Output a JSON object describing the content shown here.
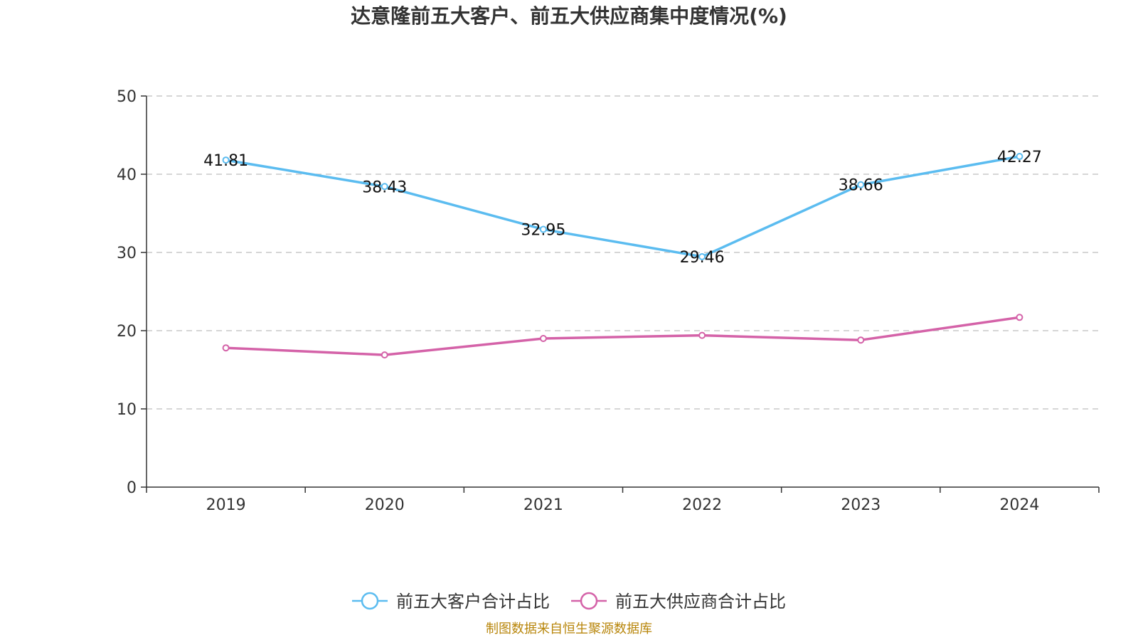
{
  "chart_data": {
    "type": "line",
    "title": "达意隆前五大客户、前五大供应商集中度情况(%)",
    "categories": [
      "2019",
      "2020",
      "2021",
      "2022",
      "2023",
      "2024"
    ],
    "ylim": [
      0,
      50
    ],
    "yticks": [
      0,
      10,
      20,
      30,
      40,
      50
    ],
    "grid": true,
    "legend_position": "bottom",
    "series": [
      {
        "name": "前五大客户合计占比",
        "color": "#5bbcf0",
        "values": [
          41.81,
          38.43,
          32.95,
          29.46,
          38.66,
          42.27
        ],
        "labels": [
          "41.81",
          "38.43",
          "32.95",
          "29.46",
          "38.66",
          "42.27"
        ],
        "show_labels": true
      },
      {
        "name": "前五大供应商合计占比",
        "color": "#d462a8",
        "values": [
          17.8,
          16.9,
          19.0,
          19.4,
          18.8,
          21.7
        ],
        "show_labels": false
      }
    ]
  },
  "source_text": "制图数据来自恒生聚源数据库"
}
